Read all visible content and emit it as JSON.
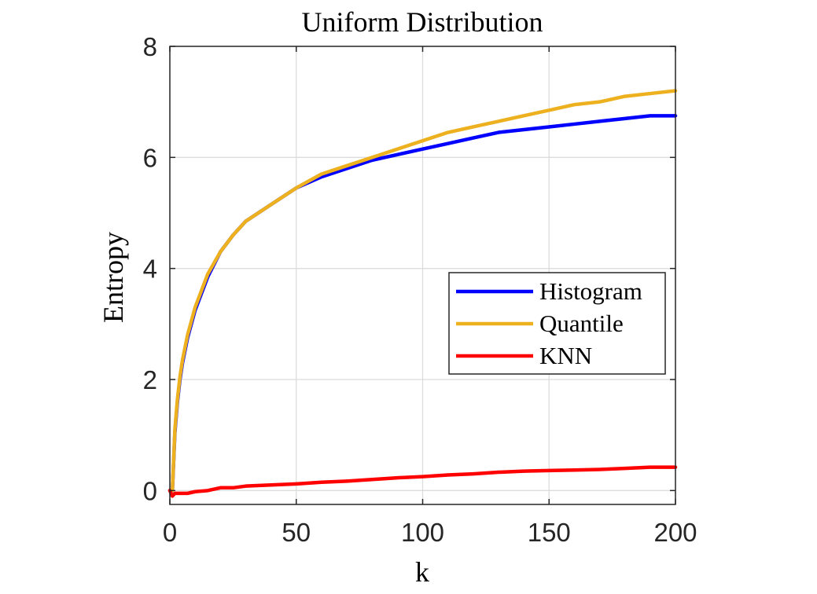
{
  "chart_data": {
    "type": "line",
    "title": "Uniform Distribution",
    "xlabel": "k",
    "ylabel": "Entropy",
    "xlim": [
      0,
      200
    ],
    "ylim": [
      -0.25,
      8
    ],
    "xticks": [
      0,
      50,
      100,
      150,
      200
    ],
    "yticks": [
      0,
      2,
      4,
      6,
      8
    ],
    "xtick_labels": [
      "0",
      "50",
      "100",
      "150",
      "200"
    ],
    "ytick_labels": [
      "0",
      "2",
      "4",
      "6",
      "8"
    ],
    "grid": true,
    "legend_position": "right",
    "x": [
      1,
      2,
      3,
      4,
      5,
      7,
      10,
      15,
      20,
      25,
      30,
      40,
      50,
      60,
      70,
      80,
      90,
      100,
      110,
      120,
      130,
      140,
      150,
      160,
      170,
      180,
      190,
      200
    ],
    "series": [
      {
        "name": "Histogram",
        "color": "#0000ff",
        "values": [
          0.0,
          1.05,
          1.6,
          2.0,
          2.3,
          2.75,
          3.25,
          3.85,
          4.3,
          4.6,
          4.85,
          5.15,
          5.45,
          5.65,
          5.8,
          5.95,
          6.05,
          6.15,
          6.25,
          6.35,
          6.45,
          6.5,
          6.55,
          6.6,
          6.65,
          6.7,
          6.75,
          6.75
        ]
      },
      {
        "name": "Quantile",
        "color": "#edb120",
        "values": [
          0.0,
          1.1,
          1.65,
          2.05,
          2.35,
          2.8,
          3.3,
          3.9,
          4.3,
          4.6,
          4.85,
          5.15,
          5.45,
          5.7,
          5.85,
          6.0,
          6.15,
          6.3,
          6.45,
          6.55,
          6.65,
          6.75,
          6.85,
          6.95,
          7.0,
          7.1,
          7.15,
          7.2
        ]
      },
      {
        "name": "KNN",
        "color": "#ff0000",
        "values": [
          -0.1,
          -0.05,
          -0.05,
          -0.05,
          -0.05,
          -0.05,
          -0.02,
          0.0,
          0.05,
          0.05,
          0.08,
          0.1,
          0.12,
          0.15,
          0.17,
          0.2,
          0.23,
          0.25,
          0.28,
          0.3,
          0.33,
          0.35,
          0.36,
          0.37,
          0.38,
          0.4,
          0.42,
          0.42
        ]
      }
    ]
  }
}
